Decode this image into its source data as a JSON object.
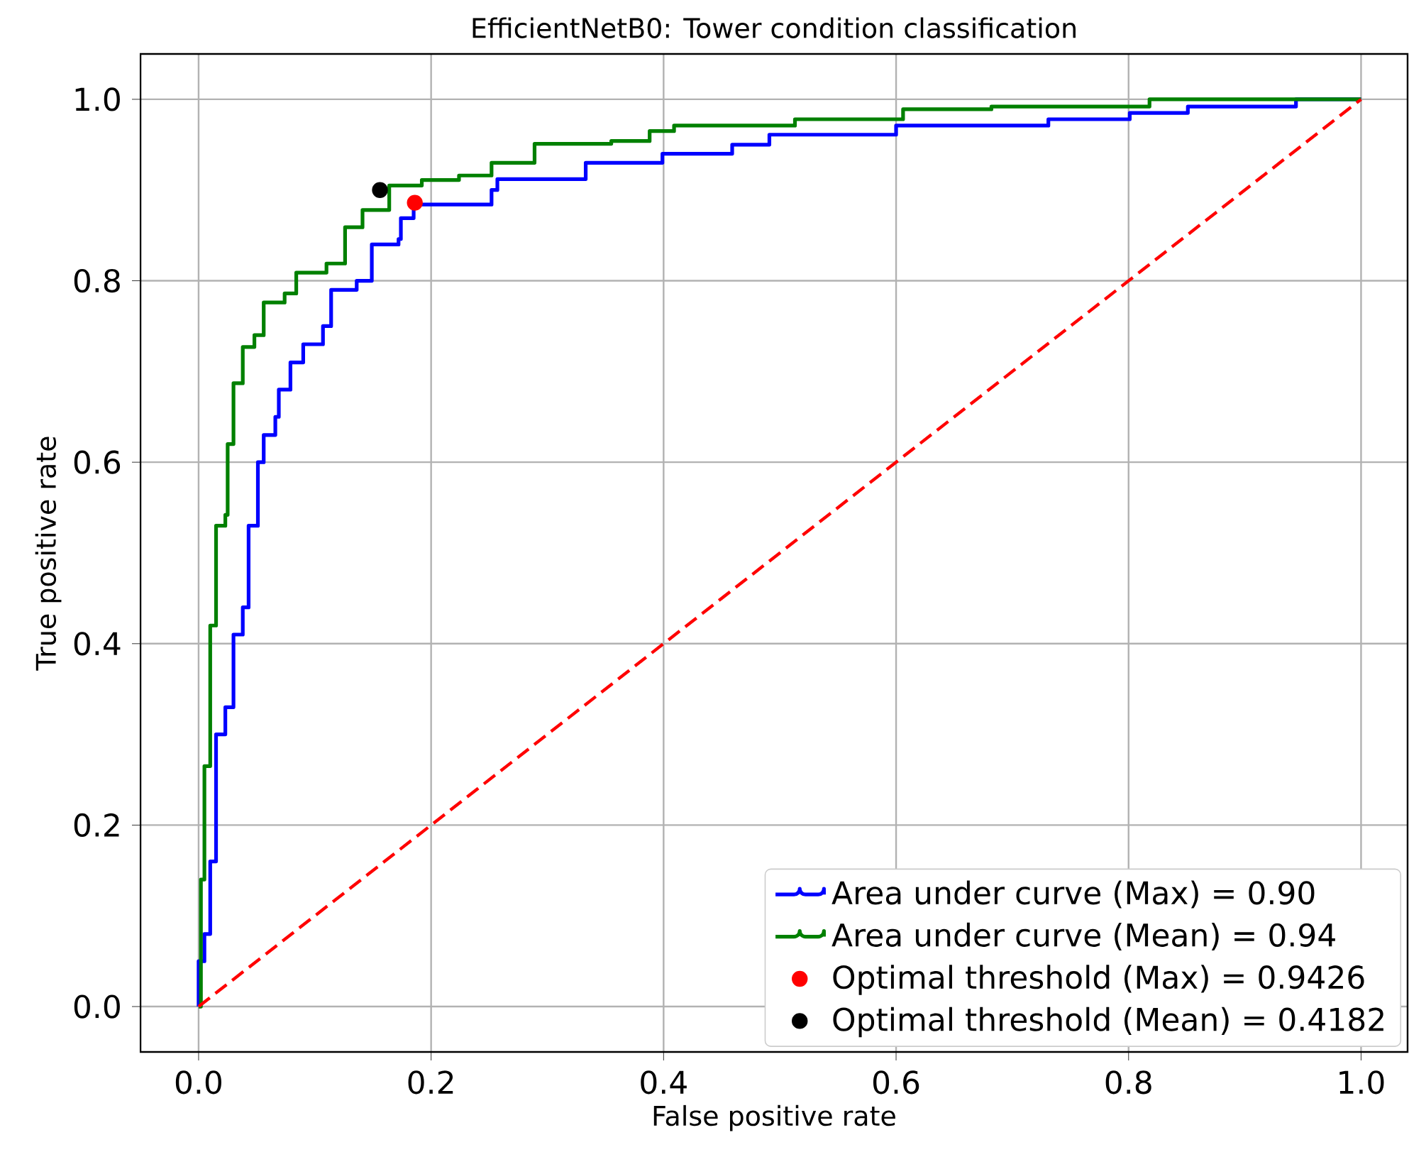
{
  "chart_data": {
    "type": "step",
    "title": "EfficientNetB0: Tower condition classification",
    "xlabel": "False positive rate",
    "ylabel": "True positive rate",
    "xlim": [
      -0.05,
      1.04
    ],
    "ylim": [
      -0.05,
      1.05
    ],
    "xticks": [
      {
        "value": 0,
        "label": "0.0"
      },
      0.2,
      0.4,
      0.6,
      0.8,
      {
        "value": 1,
        "label": "1.0"
      }
    ],
    "yticks": [
      {
        "value": 0,
        "label": "0.0"
      },
      0.2,
      0.4,
      0.6,
      0.8,
      {
        "value": 1,
        "label": "1.0"
      }
    ],
    "grid": true,
    "legend": "bottom right",
    "series": [
      {
        "name": "Area under curve (Max) = 0.90",
        "color": "#0000ff",
        "x": [
          0,
          0,
          0.005,
          0.01,
          0.015,
          0.023,
          0.03,
          0.038,
          0.043,
          0.051,
          0.056,
          0.066,
          0.069,
          0.079,
          0.09,
          0.107,
          0.114,
          0.136,
          0.149,
          0.172,
          0.174,
          0.185,
          0.186,
          0.252,
          0.257,
          0.3,
          0.333,
          0.399,
          0.459,
          0.491,
          0.6,
          0.725,
          0.731,
          0.801,
          0.851,
          0.938,
          0.944,
          1.0
        ],
        "values": [
          0,
          0.05,
          0.08,
          0.16,
          0.3,
          0.33,
          0.41,
          0.44,
          0.53,
          0.6,
          0.63,
          0.65,
          0.68,
          0.71,
          0.73,
          0.75,
          0.79,
          0.8,
          0.84,
          0.846,
          0.869,
          0.882,
          0.884,
          0.9,
          0.912,
          0.912,
          0.93,
          0.94,
          0.95,
          0.961,
          0.971,
          0.971,
          0.978,
          0.985,
          0.992,
          0.992,
          1.0,
          1.0
        ]
      },
      {
        "name": "Area under curve (Mean) = 0.94",
        "color": "#008000",
        "x": [
          0,
          0.002,
          0.005,
          0.01,
          0.015,
          0.023,
          0.025,
          0.03,
          0.038,
          0.048,
          0.056,
          0.074,
          0.084,
          0.11,
          0.126,
          0.141,
          0.164,
          0.192,
          0.224,
          0.252,
          0.289,
          0.355,
          0.388,
          0.409,
          0.513,
          0.606,
          0.682,
          0.818,
          1.0
        ],
        "values": [
          0,
          0.14,
          0.265,
          0.42,
          0.53,
          0.542,
          0.62,
          0.687,
          0.727,
          0.74,
          0.776,
          0.786,
          0.809,
          0.819,
          0.859,
          0.878,
          0.905,
          0.911,
          0.916,
          0.93,
          0.951,
          0.954,
          0.965,
          0.971,
          0.978,
          0.989,
          0.992,
          1.0,
          1.0
        ]
      },
      {
        "type": "line",
        "color": "#ff0000",
        "line_style": "dashed",
        "x": [
          0,
          1
        ],
        "values": [
          0,
          1
        ]
      },
      {
        "type": "scatter",
        "marker": "circle",
        "name": "Optimal threshold (Max) = 0.9426",
        "color": "#ff0000",
        "x": [
          0.186
        ],
        "values": [
          0.886
        ]
      },
      {
        "type": "scatter",
        "marker": "circle",
        "name": "Optimal threshold (Mean) = 0.4182",
        "color": "#000000",
        "x": [
          0.156
        ],
        "values": [
          0.9
        ]
      }
    ]
  }
}
